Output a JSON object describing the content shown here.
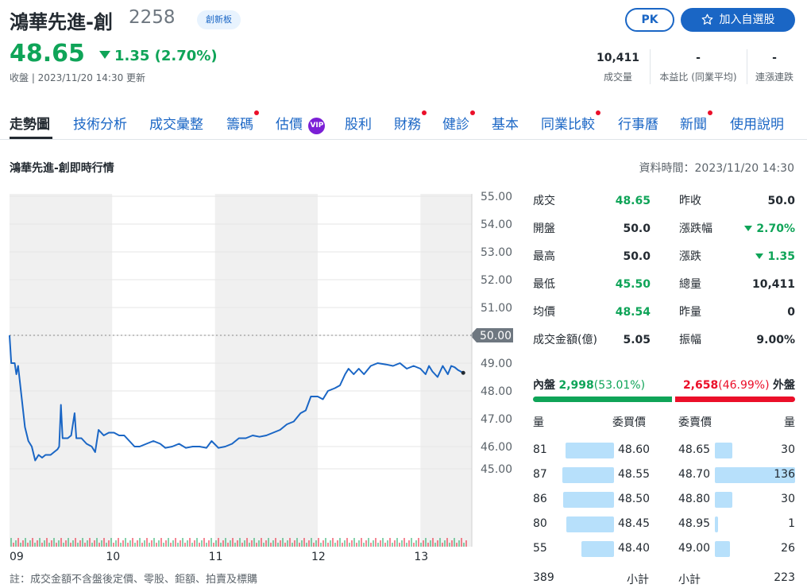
{
  "stock": {
    "name": "鴻華先進-創",
    "code": "2258",
    "board": "創新板",
    "price": "48.65",
    "change": "1.35 (2.70%)",
    "update": "收盤 | 2023/11/20 14:30 更新"
  },
  "actions": {
    "pk": "PK",
    "add": "加入自選股"
  },
  "stats": [
    {
      "value": "10,411",
      "label": "成交量"
    },
    {
      "value": "-",
      "label": "本益比 (同業平均)"
    },
    {
      "value": "-",
      "label": "連漲連跌"
    }
  ],
  "tabs": [
    {
      "label": "走勢圖",
      "active": true,
      "dot": false
    },
    {
      "label": "技術分析",
      "dot": false
    },
    {
      "label": "成交彙整",
      "dot": false
    },
    {
      "label": "籌碼",
      "dot": true
    },
    {
      "label": "估價",
      "dot": false,
      "vip": "VIP"
    },
    {
      "label": "股利",
      "dot": false
    },
    {
      "label": "財務",
      "dot": true
    },
    {
      "label": "健診",
      "dot": true
    },
    {
      "label": "基本",
      "dot": false
    },
    {
      "label": "同業比較",
      "dot": true
    },
    {
      "label": "行事曆",
      "dot": false
    },
    {
      "label": "新聞",
      "dot": true
    },
    {
      "label": "使用說明",
      "dot": false
    }
  ],
  "section_title": "鴻華先進-創即時行情",
  "data_time": "資料時間：2023/11/20 14:30",
  "quote_left": [
    {
      "label": "成交",
      "value": "48.65",
      "color": "#0fa458"
    },
    {
      "label": "開盤",
      "value": "50.0",
      "color": "#232a31"
    },
    {
      "label": "最高",
      "value": "50.0",
      "color": "#232a31"
    },
    {
      "label": "最低",
      "value": "45.50",
      "color": "#0fa458"
    },
    {
      "label": "均價",
      "value": "48.54",
      "color": "#0fa458"
    },
    {
      "label": "成交金額(億)",
      "value": "5.05",
      "color": "#232a31"
    }
  ],
  "quote_right": [
    {
      "label": "昨收",
      "value": "50.0",
      "color": "#232a31"
    },
    {
      "label": "漲跌幅",
      "value": "2.70%",
      "color": "#0fa458",
      "down": true
    },
    {
      "label": "漲跌",
      "value": "1.35",
      "color": "#0fa458",
      "down": true
    },
    {
      "label": "總量",
      "value": "10,411",
      "color": "#232a31"
    },
    {
      "label": "昨量",
      "value": "0",
      "color": "#232a31"
    },
    {
      "label": "振幅",
      "value": "9.00%",
      "color": "#232a31"
    }
  ],
  "inner_outer": {
    "inner_label": "內盤",
    "inner_value": "2,998",
    "inner_pct": "(53.01%)",
    "outer_value": "2,658",
    "outer_pct": "(46.99%)",
    "outer_label": "外盤",
    "inner_share": 0.5301
  },
  "order_book": {
    "headers": [
      "量",
      "委買價",
      "委賣價",
      "量"
    ],
    "bids": [
      {
        "qty": "81",
        "price": "48.60",
        "qty_num": 81
      },
      {
        "qty": "87",
        "price": "48.55",
        "qty_num": 87
      },
      {
        "qty": "86",
        "price": "48.50",
        "qty_num": 86
      },
      {
        "qty": "80",
        "price": "48.45",
        "qty_num": 80
      },
      {
        "qty": "55",
        "price": "48.40",
        "qty_num": 55
      }
    ],
    "asks": [
      {
        "qty": "30",
        "price": "48.65",
        "qty_num": 30
      },
      {
        "qty": "136",
        "price": "48.70",
        "qty_num": 136
      },
      {
        "qty": "30",
        "price": "48.80",
        "qty_num": 30
      },
      {
        "qty": "1",
        "price": "48.95",
        "qty_num": 1
      },
      {
        "qty": "26",
        "price": "49.00",
        "qty_num": 26
      }
    ],
    "bid_total": "389",
    "bid_total_label": "小計",
    "ask_total_label": "小計",
    "ask_total": "223"
  },
  "footnote": "註：成交金額不含盤後定價、零股、鉅額、拍賣及標購",
  "chart_data": {
    "type": "line",
    "y_ticks": [
      "55.00",
      "54.00",
      "53.00",
      "52.00",
      "51.00",
      "50.00",
      "49.00",
      "48.00",
      "47.00",
      "46.00",
      "45.00"
    ],
    "x_ticks": [
      "09",
      "10",
      "11",
      "12",
      "13"
    ],
    "reference": {
      "value": 50.0,
      "label": "50.00"
    },
    "ylim": [
      45,
      55
    ],
    "colors": {
      "line": "#1a66c5",
      "volume_up": "#eb0f29",
      "volume_down": "#0fa458"
    },
    "series": [
      {
        "values": [
          {
            "t": "09:00",
            "y": 50.0
          },
          {
            "t": "09:01",
            "y": 49.0
          },
          {
            "t": "09:03",
            "y": 49.0
          },
          {
            "t": "09:04",
            "y": 48.6
          },
          {
            "t": "09:05",
            "y": 48.9
          },
          {
            "t": "09:07",
            "y": 47.8
          },
          {
            "t": "09:09",
            "y": 46.7
          },
          {
            "t": "09:11",
            "y": 46.2
          },
          {
            "t": "09:13",
            "y": 46.0
          },
          {
            "t": "09:15",
            "y": 45.5
          },
          {
            "t": "09:17",
            "y": 45.7
          },
          {
            "t": "09:19",
            "y": 45.6
          },
          {
            "t": "09:21",
            "y": 45.7
          },
          {
            "t": "09:24",
            "y": 45.7
          },
          {
            "t": "09:26",
            "y": 45.8
          },
          {
            "t": "09:28",
            "y": 45.9
          },
          {
            "t": "09:29",
            "y": 46.0
          },
          {
            "t": "09:30",
            "y": 47.5
          },
          {
            "t": "09:31",
            "y": 46.3
          },
          {
            "t": "09:34",
            "y": 46.3
          },
          {
            "t": "09:36",
            "y": 46.4
          },
          {
            "t": "09:38",
            "y": 47.2
          },
          {
            "t": "09:39",
            "y": 46.3
          },
          {
            "t": "09:42",
            "y": 46.3
          },
          {
            "t": "09:45",
            "y": 46.1
          },
          {
            "t": "09:48",
            "y": 46.0
          },
          {
            "t": "09:50",
            "y": 45.8
          },
          {
            "t": "09:52",
            "y": 46.6
          },
          {
            "t": "09:55",
            "y": 46.4
          },
          {
            "t": "09:58",
            "y": 46.5
          },
          {
            "t": "10:01",
            "y": 46.5
          },
          {
            "t": "10:04",
            "y": 46.4
          },
          {
            "t": "10:07",
            "y": 46.4
          },
          {
            "t": "10:10",
            "y": 46.2
          },
          {
            "t": "10:13",
            "y": 46.0
          },
          {
            "t": "10:16",
            "y": 46.0
          },
          {
            "t": "10:20",
            "y": 46.1
          },
          {
            "t": "10:24",
            "y": 46.2
          },
          {
            "t": "10:28",
            "y": 46.1
          },
          {
            "t": "10:31",
            "y": 45.95
          },
          {
            "t": "10:35",
            "y": 46.0
          },
          {
            "t": "10:39",
            "y": 46.1
          },
          {
            "t": "10:43",
            "y": 45.95
          },
          {
            "t": "10:47",
            "y": 46.0
          },
          {
            "t": "10:51",
            "y": 46.0
          },
          {
            "t": "10:55",
            "y": 45.95
          },
          {
            "t": "10:58",
            "y": 46.2
          },
          {
            "t": "11:02",
            "y": 45.95
          },
          {
            "t": "11:06",
            "y": 46.0
          },
          {
            "t": "11:10",
            "y": 46.1
          },
          {
            "t": "11:14",
            "y": 46.3
          },
          {
            "t": "11:18",
            "y": 46.3
          },
          {
            "t": "11:22",
            "y": 46.4
          },
          {
            "t": "11:26",
            "y": 46.35
          },
          {
            "t": "11:30",
            "y": 46.4
          },
          {
            "t": "11:34",
            "y": 46.5
          },
          {
            "t": "11:38",
            "y": 46.6
          },
          {
            "t": "11:42",
            "y": 46.8
          },
          {
            "t": "11:46",
            "y": 46.9
          },
          {
            "t": "11:50",
            "y": 47.2
          },
          {
            "t": "11:53",
            "y": 47.3
          },
          {
            "t": "11:56",
            "y": 47.8
          },
          {
            "t": "12:00",
            "y": 47.8
          },
          {
            "t": "12:03",
            "y": 47.7
          },
          {
            "t": "12:06",
            "y": 48.0
          },
          {
            "t": "12:10",
            "y": 48.1
          },
          {
            "t": "12:13",
            "y": 48.2
          },
          {
            "t": "12:16",
            "y": 48.6
          },
          {
            "t": "12:18",
            "y": 48.8
          },
          {
            "t": "12:21",
            "y": 48.6
          },
          {
            "t": "12:24",
            "y": 48.8
          },
          {
            "t": "12:27",
            "y": 48.6
          },
          {
            "t": "12:31",
            "y": 48.9
          },
          {
            "t": "12:35",
            "y": 49.0
          },
          {
            "t": "12:40",
            "y": 48.95
          },
          {
            "t": "12:44",
            "y": 48.9
          },
          {
            "t": "12:48",
            "y": 49.0
          },
          {
            "t": "12:52",
            "y": 48.8
          },
          {
            "t": "12:56",
            "y": 48.9
          },
          {
            "t": "13:00",
            "y": 48.8
          },
          {
            "t": "13:03",
            "y": 48.6
          },
          {
            "t": "13:05",
            "y": 48.9
          },
          {
            "t": "13:07",
            "y": 48.7
          },
          {
            "t": "13:10",
            "y": 48.5
          },
          {
            "t": "13:13",
            "y": 48.9
          },
          {
            "t": "13:16",
            "y": 48.6
          },
          {
            "t": "13:18",
            "y": 48.9
          },
          {
            "t": "13:20",
            "y": 48.85
          },
          {
            "t": "13:22",
            "y": 48.75
          },
          {
            "t": "13:25",
            "y": 48.65
          }
        ]
      }
    ]
  }
}
